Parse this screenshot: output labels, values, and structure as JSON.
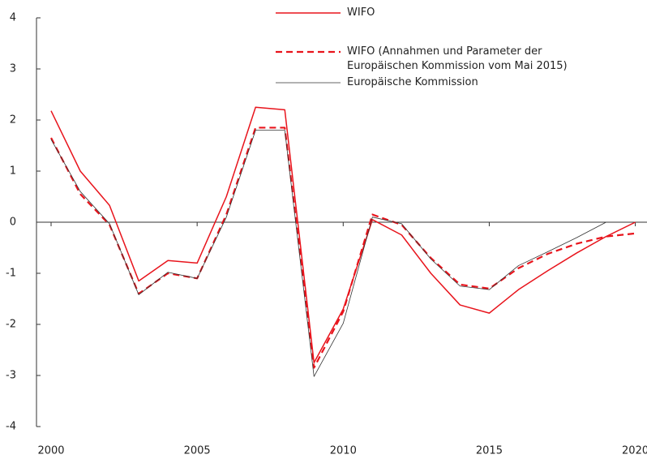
{
  "chart_data": {
    "type": "line",
    "x": [
      2000,
      2001,
      2002,
      2003,
      2004,
      2005,
      2006,
      2007,
      2008,
      2009,
      2010,
      2011,
      2012,
      2013,
      2014,
      2015,
      2016,
      2017,
      2018,
      2019,
      2020
    ],
    "series": [
      {
        "name": "WIFO",
        "color": "#e8141c",
        "style": "solid",
        "values": [
          2.18,
          1.0,
          0.33,
          -1.15,
          -0.75,
          -0.8,
          0.5,
          2.25,
          2.2,
          -2.75,
          -1.7,
          0.05,
          -0.25,
          -1.0,
          -1.62,
          -1.78,
          -1.32,
          -0.95,
          -0.6,
          -0.28,
          0.0
        ]
      },
      {
        "name": "WIFO (Annahmen und Parameter der\nEuropäischen Kommission vom Mai 2015)",
        "color": "#e8141c",
        "style": "dashed",
        "values": [
          1.65,
          0.55,
          -0.05,
          -1.4,
          -1.0,
          -1.1,
          0.15,
          1.85,
          1.85,
          -2.85,
          -1.75,
          0.15,
          -0.05,
          -0.7,
          -1.22,
          -1.3,
          -0.9,
          -0.62,
          -0.42,
          -0.28,
          -0.22
        ]
      },
      {
        "name": "Europäische Kommission",
        "color": "#333333",
        "style": "thin",
        "values": [
          1.62,
          0.6,
          -0.03,
          -1.42,
          -0.98,
          -1.1,
          0.1,
          1.8,
          1.8,
          -3.02,
          -1.98,
          0.1,
          -0.03,
          -0.72,
          -1.25,
          -1.32,
          -0.85,
          -0.58,
          -0.3,
          0.0,
          null
        ]
      }
    ],
    "xlim": [
      1999.5,
      2020.4
    ],
    "xticks": [
      2000,
      2005,
      2010,
      2015,
      2020
    ],
    "ylim": [
      -4,
      4
    ],
    "yticks": [
      -4,
      -3,
      -2,
      -1,
      0,
      1,
      2,
      3,
      4
    ],
    "grid": false
  }
}
